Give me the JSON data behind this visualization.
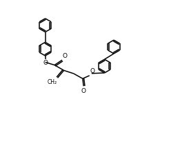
{
  "bg_color": "#ffffff",
  "line_color": "#000000",
  "lw": 1.1,
  "figsize": [
    2.61,
    2.24
  ],
  "dpi": 100,
  "ring_r": 0.38,
  "xlim": [
    0.0,
    10.0
  ],
  "ylim": [
    0.0,
    8.5
  ]
}
